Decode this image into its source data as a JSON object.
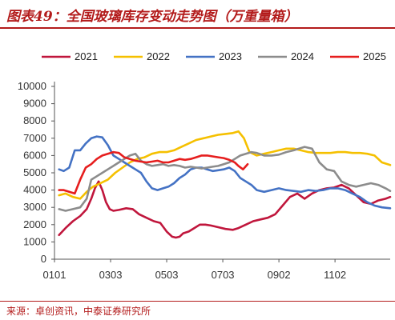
{
  "header": {
    "title": "图表49：全国玻璃库存变动走势图（万重量箱）"
  },
  "footer": {
    "source": "来源：卓创资讯，中泰证券研究所"
  },
  "chart_data": {
    "type": "line",
    "title": "图表49：全国玻璃库存变动走势图（万重量箱）",
    "xlabel": "",
    "ylabel": "",
    "x_ticks": [
      "0101",
      "0303",
      "0503",
      "0703",
      "0902",
      "1102"
    ],
    "y_ticks": [
      0,
      1000,
      2000,
      3000,
      4000,
      5000,
      6000,
      7000,
      8000,
      9000,
      10000
    ],
    "ylim": [
      0,
      10000
    ],
    "x_domain": [
      0,
      365
    ],
    "x_tick_positions": [
      0,
      61,
      122,
      183,
      244,
      305
    ],
    "grid": false,
    "legend_position": "top",
    "series": [
      {
        "name": "2021",
        "color": "#c0163c",
        "x": [
          5,
          12,
          20,
          28,
          35,
          40,
          44,
          48,
          52,
          56,
          60,
          64,
          70,
          78,
          85,
          92,
          100,
          108,
          115,
          122,
          128,
          132,
          136,
          140,
          146,
          152,
          158,
          164,
          170,
          178,
          186,
          194,
          200,
          208,
          216,
          224,
          232,
          240,
          248,
          256,
          264,
          272,
          280,
          288,
          296,
          304,
          312,
          320,
          328,
          336,
          344,
          352,
          360,
          365
        ],
        "y": [
          1400,
          1800,
          2200,
          2500,
          2900,
          3500,
          4100,
          4500,
          4000,
          3300,
          2900,
          2800,
          2850,
          2950,
          2900,
          2600,
          2400,
          2200,
          2100,
          1600,
          1300,
          1250,
          1300,
          1500,
          1600,
          1800,
          2000,
          2000,
          1950,
          1850,
          1750,
          1700,
          1800,
          2000,
          2200,
          2300,
          2400,
          2600,
          3100,
          3600,
          3800,
          3500,
          3800,
          4000,
          4100,
          4150,
          4300,
          4100,
          3700,
          3300,
          3200,
          3400,
          3500,
          3600
        ]
      },
      {
        "name": "2022",
        "color": "#f5c000",
        "x": [
          5,
          12,
          20,
          28,
          35,
          42,
          50,
          58,
          66,
          74,
          82,
          90,
          98,
          106,
          114,
          122,
          130,
          138,
          146,
          154,
          162,
          170,
          178,
          186,
          194,
          200,
          206,
          212,
          220,
          228,
          236,
          244,
          252,
          260,
          268,
          276,
          284,
          292,
          300,
          308,
          316,
          324,
          332,
          340,
          348,
          356,
          365
        ],
        "y": [
          3700,
          3800,
          3600,
          3500,
          3900,
          4200,
          4400,
          4600,
          5000,
          5300,
          5600,
          5800,
          5900,
          6100,
          6200,
          6200,
          6300,
          6500,
          6700,
          6900,
          7000,
          7100,
          7200,
          7250,
          7300,
          7400,
          7000,
          6200,
          6000,
          6100,
          6200,
          6300,
          6400,
          6400,
          6300,
          6200,
          6150,
          6150,
          6150,
          6200,
          6200,
          6150,
          6150,
          6100,
          6000,
          5600,
          5450
        ]
      },
      {
        "name": "2023",
        "color": "#4472c4",
        "x": [
          5,
          10,
          16,
          22,
          28,
          34,
          40,
          46,
          52,
          58,
          64,
          70,
          76,
          82,
          88,
          94,
          100,
          106,
          112,
          118,
          124,
          130,
          136,
          142,
          148,
          154,
          160,
          166,
          172,
          178,
          184,
          190,
          196,
          202,
          208,
          214,
          220,
          228,
          236,
          244,
          252,
          260,
          268,
          276,
          284,
          292,
          300,
          308,
          316,
          324,
          332,
          340,
          348,
          356,
          365
        ],
        "y": [
          5200,
          5100,
          5300,
          6300,
          6300,
          6700,
          7000,
          7100,
          7050,
          6600,
          6000,
          5800,
          5600,
          5400,
          5200,
          5000,
          4500,
          4100,
          4000,
          4100,
          4200,
          4400,
          4700,
          4900,
          5200,
          5300,
          5300,
          5200,
          5100,
          5150,
          5200,
          5300,
          5100,
          4700,
          4500,
          4300,
          4000,
          3900,
          4000,
          4100,
          4000,
          3950,
          3900,
          4000,
          3950,
          4000,
          4100,
          4100,
          4000,
          3800,
          3600,
          3300,
          3100,
          3000,
          2950
        ]
      },
      {
        "name": "2024",
        "color": "#8c8c8c",
        "x": [
          5,
          12,
          20,
          28,
          35,
          40,
          46,
          52,
          58,
          64,
          70,
          76,
          82,
          88,
          94,
          100,
          106,
          112,
          118,
          124,
          130,
          136,
          142,
          148,
          154,
          160,
          166,
          172,
          178,
          184,
          190,
          196,
          202,
          208,
          214,
          220,
          228,
          236,
          244,
          252,
          260,
          266,
          272,
          280,
          288,
          296,
          304,
          312,
          320,
          328,
          336,
          344,
          352,
          360,
          365
        ],
        "y": [
          2900,
          2800,
          2900,
          3000,
          3500,
          4600,
          4800,
          5000,
          5200,
          5400,
          5600,
          5800,
          6000,
          6100,
          5700,
          5500,
          5400,
          5450,
          5500,
          5400,
          5450,
          5400,
          5300,
          5350,
          5300,
          5250,
          5300,
          5350,
          5400,
          5500,
          5600,
          5800,
          6000,
          6100,
          6200,
          6150,
          6000,
          6000,
          6050,
          6200,
          6300,
          6400,
          6500,
          6400,
          5600,
          5200,
          5100,
          4500,
          4300,
          4200,
          4300,
          4400,
          4300,
          4100,
          3950
        ]
      },
      {
        "name": "2025",
        "color": "#e61e1e",
        "x": [
          5,
          10,
          16,
          22,
          28,
          34,
          40,
          46,
          52,
          58,
          64,
          70,
          76,
          82,
          88,
          94,
          100,
          106,
          112,
          118,
          124,
          130,
          136,
          142,
          148,
          154,
          160,
          166,
          172,
          178,
          184,
          190,
          196,
          200,
          205,
          210
        ],
        "y": [
          4000,
          4000,
          3900,
          3800,
          4600,
          5300,
          5500,
          5800,
          6000,
          6100,
          6200,
          6150,
          5900,
          5800,
          5700,
          5650,
          5600,
          5650,
          5700,
          5600,
          5600,
          5700,
          5800,
          5750,
          5800,
          5900,
          6000,
          6000,
          5950,
          5900,
          5850,
          5750,
          5600,
          5400,
          5200,
          5500
        ]
      }
    ]
  }
}
